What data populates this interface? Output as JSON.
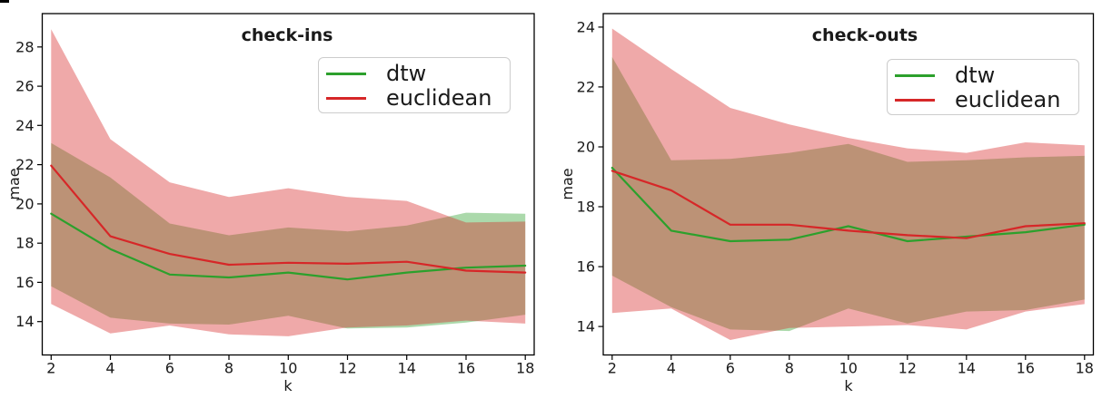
{
  "figure": {
    "background": "#ffffff",
    "axis_color": "#000000",
    "text_color": "#1a1a1a",
    "band_opacity": 0.4
  },
  "chart_data": [
    {
      "type": "line",
      "title": "check-ins",
      "xlabel": "k",
      "ylabel": "mae",
      "grid": false,
      "legend_position": "upper right",
      "x": [
        2,
        4,
        6,
        8,
        10,
        12,
        14,
        16,
        18
      ],
      "xticks": [
        2,
        4,
        6,
        8,
        10,
        12,
        14,
        16,
        18
      ],
      "yticks": [
        14,
        16,
        18,
        20,
        22,
        24,
        26,
        28
      ],
      "xlim": [
        1.7,
        18.3
      ],
      "ylim": [
        12.3,
        29.7
      ],
      "series": [
        {
          "name": "dtw",
          "color": "#2ca02c",
          "values": [
            19.5,
            17.7,
            16.4,
            16.25,
            16.5,
            16.15,
            16.5,
            16.75,
            16.85
          ],
          "band_lower": [
            15.8,
            14.2,
            13.9,
            13.85,
            14.3,
            13.65,
            13.7,
            13.95,
            14.35
          ],
          "band_upper": [
            23.1,
            21.35,
            19.0,
            18.4,
            18.8,
            18.6,
            18.9,
            19.55,
            19.5
          ]
        },
        {
          "name": "euclidean",
          "color": "#d62728",
          "values": [
            21.95,
            18.35,
            17.45,
            16.9,
            17.0,
            16.95,
            17.05,
            16.6,
            16.5
          ],
          "band_lower": [
            14.9,
            13.4,
            13.8,
            13.35,
            13.25,
            13.7,
            13.8,
            14.05,
            13.9
          ],
          "band_upper": [
            28.9,
            23.3,
            21.1,
            20.35,
            20.8,
            20.35,
            20.15,
            19.05,
            19.1
          ]
        }
      ]
    },
    {
      "type": "line",
      "title": "check-outs",
      "xlabel": "k",
      "ylabel": "mae",
      "grid": false,
      "legend_position": "upper right",
      "x": [
        2,
        4,
        6,
        8,
        10,
        12,
        14,
        16,
        18
      ],
      "xticks": [
        2,
        4,
        6,
        8,
        10,
        12,
        14,
        16,
        18
      ],
      "yticks": [
        14,
        16,
        18,
        20,
        22,
        24
      ],
      "xlim": [
        1.7,
        18.3
      ],
      "ylim": [
        13.05,
        24.45
      ],
      "series": [
        {
          "name": "dtw",
          "color": "#2ca02c",
          "values": [
            19.3,
            17.2,
            16.85,
            16.9,
            17.35,
            16.85,
            17.0,
            17.15,
            17.4
          ],
          "band_lower": [
            15.7,
            14.65,
            13.9,
            13.85,
            14.6,
            14.1,
            14.5,
            14.55,
            14.9
          ],
          "band_upper": [
            23.0,
            19.55,
            19.6,
            19.8,
            20.1,
            19.5,
            19.55,
            19.65,
            19.7
          ]
        },
        {
          "name": "euclidean",
          "color": "#d62728",
          "values": [
            19.2,
            18.55,
            17.4,
            17.4,
            17.2,
            17.05,
            16.95,
            17.35,
            17.45
          ],
          "band_lower": [
            14.45,
            14.6,
            13.55,
            13.95,
            14.0,
            14.05,
            13.9,
            14.5,
            14.75
          ],
          "band_upper": [
            23.95,
            22.6,
            21.3,
            20.75,
            20.3,
            19.95,
            19.8,
            20.15,
            20.05
          ]
        }
      ]
    }
  ]
}
